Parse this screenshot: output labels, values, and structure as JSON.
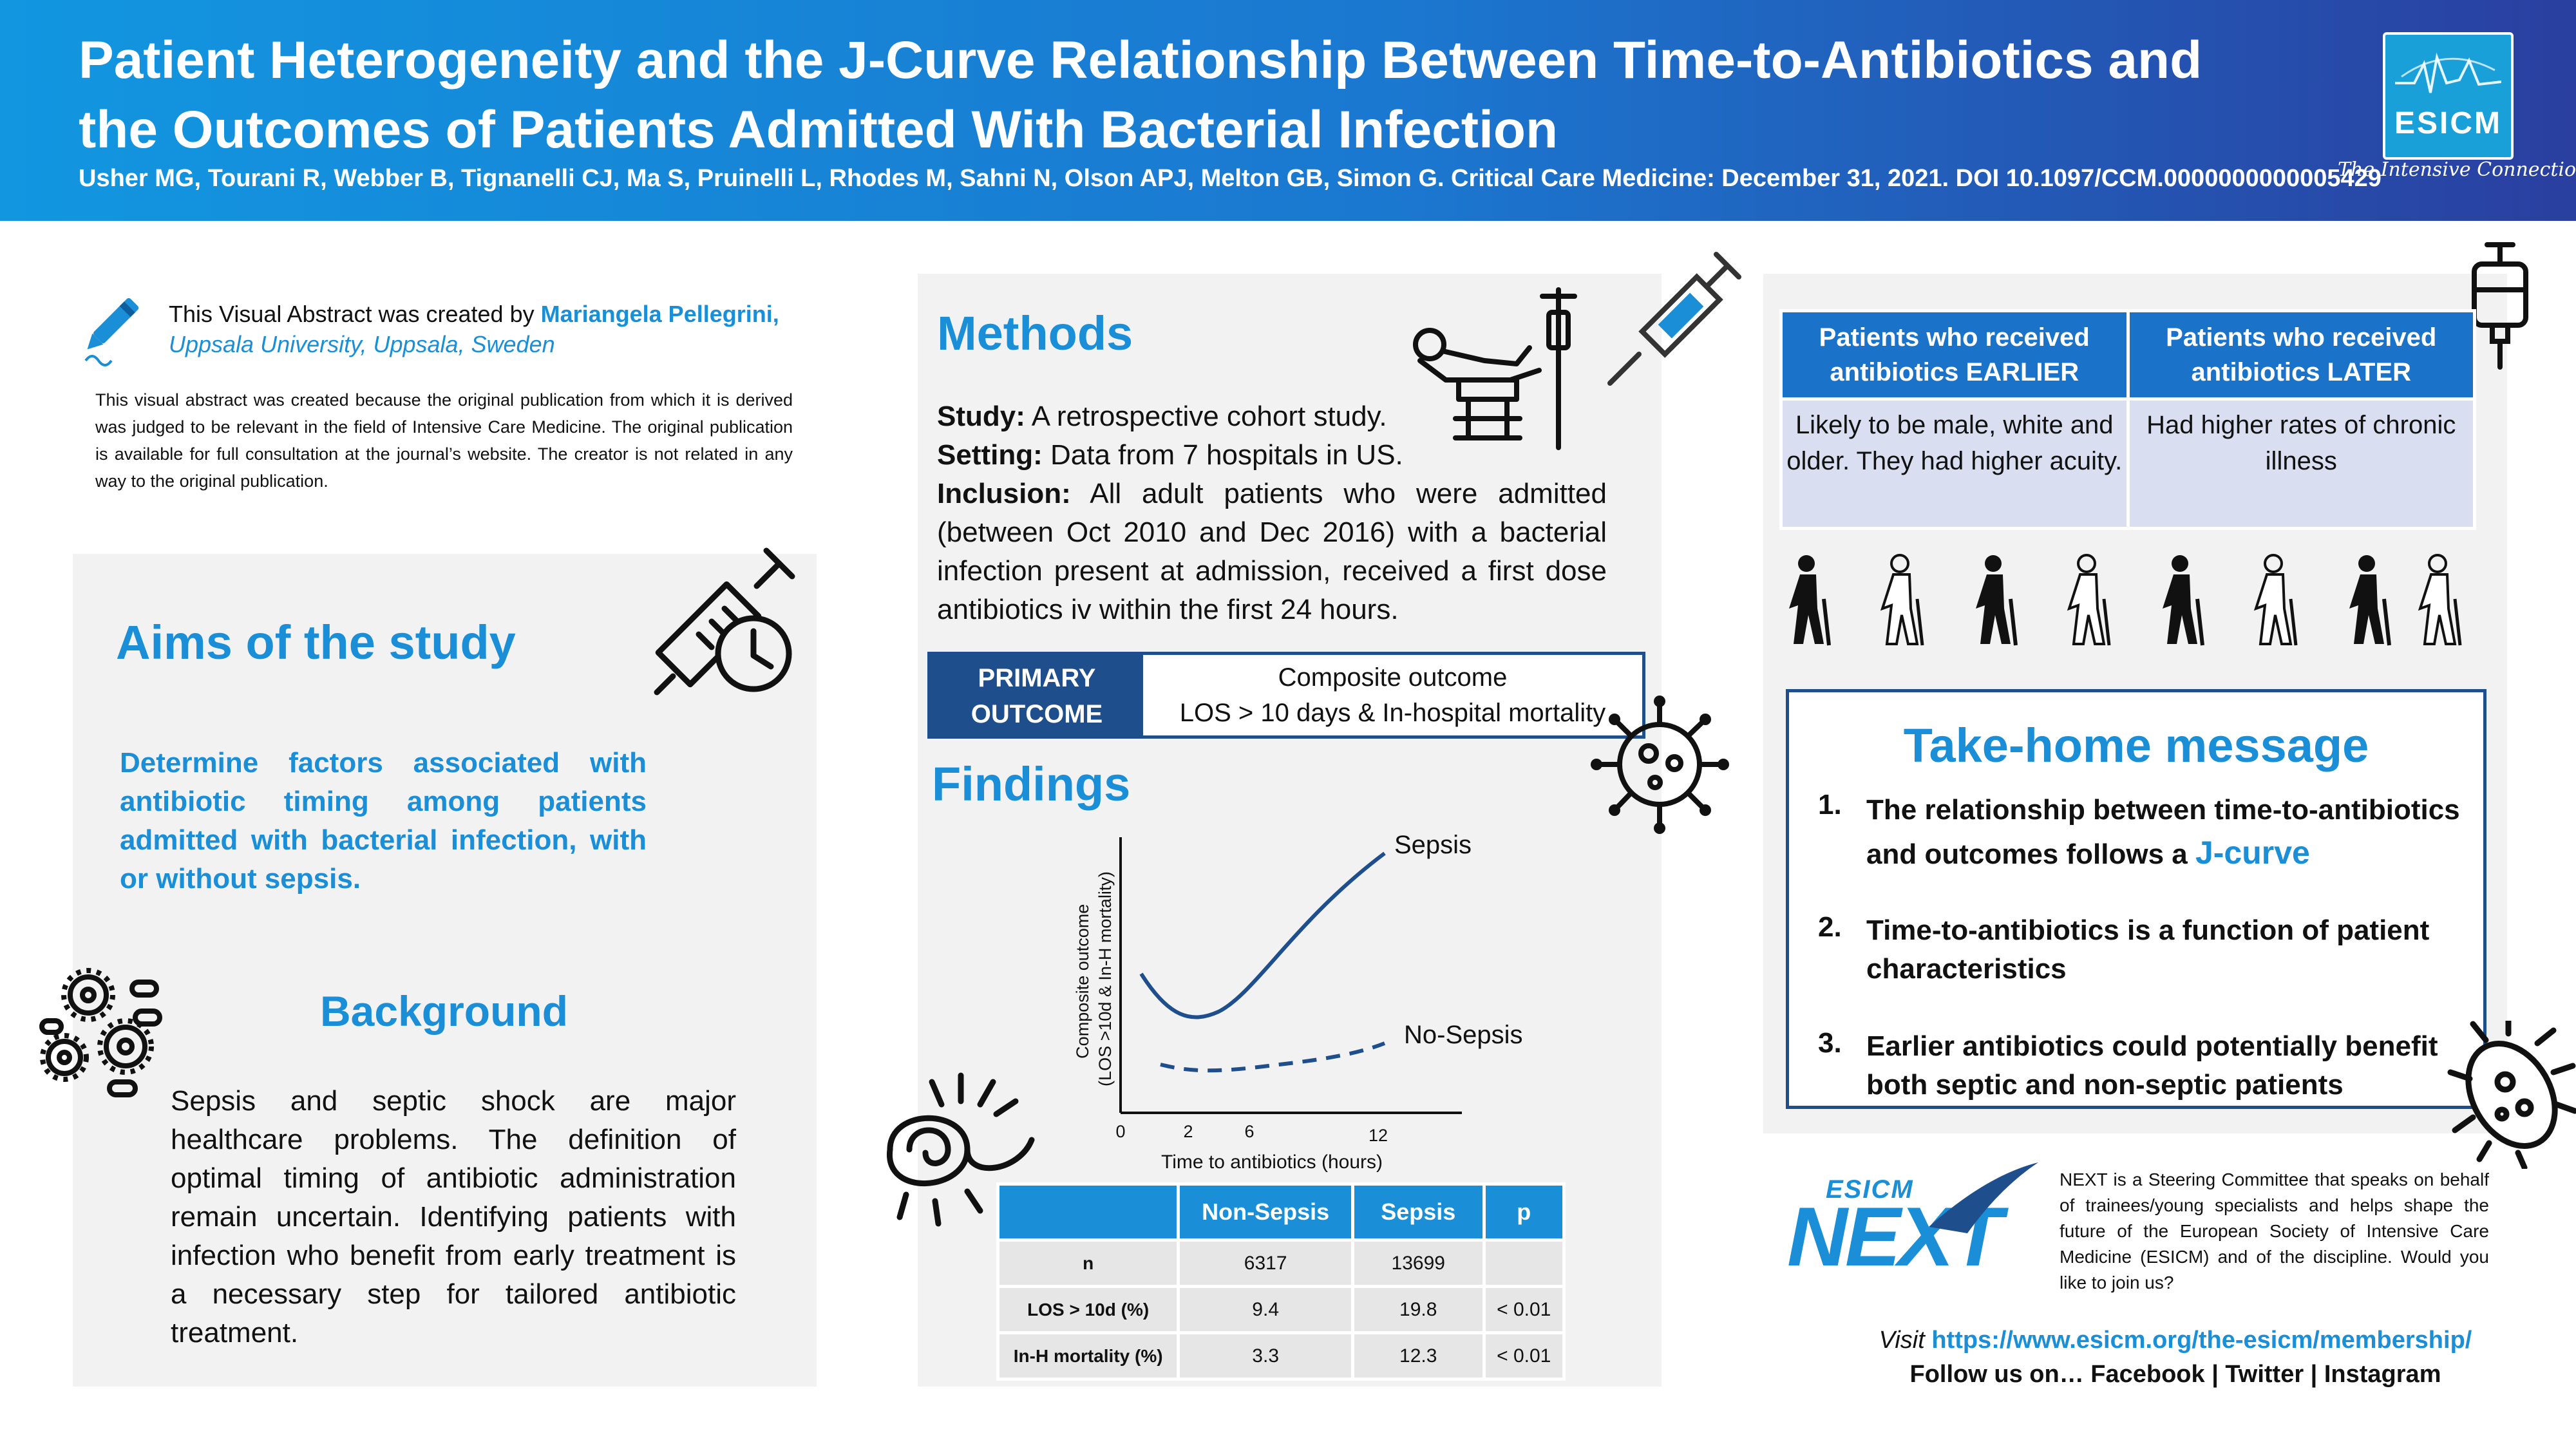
{
  "header": {
    "title": "Patient Heterogeneity and the J-Curve Relationship Between Time-to-Antibiotics and the Outcomes of Patients Admitted With Bacterial Infection",
    "citation": "Usher MG, Tourani R, Webber B, Tignanelli CJ, Ma S, Pruinelli L, Rhodes M, Sahni N, Olson APJ, Melton GB, Simon G. Critical Care Medicine: December 31, 2021. DOI 10.1097/CCM.0000000000005429",
    "logo_text": "ESICM",
    "tagline": "The Intensive Connection"
  },
  "creator": {
    "prefix": "This Visual Abstract was created by ",
    "name": "Mariangela Pellegrini,",
    "affiliation": "Uppsala University, Uppsala, Sweden",
    "disclaimer": "This visual abstract was created because the original publication from which it is derived was judged to be relevant in the field of Intensive Care Medicine. The original publication is available for full consultation at the journal’s website. The creator is not related in any way to the original publication."
  },
  "aims": {
    "heading": "Aims of the study",
    "text": "Determine factors associated with antibiotic timing among patients admitted with bacterial infection, with or without sepsis."
  },
  "background": {
    "heading": "Background",
    "text": "Sepsis and septic shock are major healthcare problems. The definition of optimal timing of antibiotic administration remain uncertain. Identifying patients with infection who benefit from early treatment is a necessary step for tailored antibiotic treatment."
  },
  "methods": {
    "heading": "Methods",
    "study_label": "Study:",
    "study_text": " A retrospective cohort study.",
    "setting_label": "Setting:",
    "setting_text": " Data from 7 hospitals in US.",
    "inclusion_label": "Inclusion:",
    "inclusion_text": " All adult patients who were admitted (between Oct 2010 and Dec 2016) with a bacterial infection present at admission, received a first dose antibiotics iv within the first 24 hours.",
    "primary_outcome_label": "PRIMARY OUTCOME",
    "outcome_line1": "Composite outcome",
    "outcome_line2": "LOS > 10 days  & In-hospital mortality"
  },
  "findings": {
    "heading": "Findings",
    "chart_data": {
      "type": "line",
      "xlabel": "Time to antibiotics (hours)",
      "ylabel": "Composite outcome (LOS >10d & In-H mortality)",
      "xticks": [
        "0",
        "2",
        "6",
        "12"
      ],
      "series": [
        {
          "name": "Sepsis",
          "style": "solid",
          "color": "#1f4e8c"
        },
        {
          "name": "No-Sepsis",
          "style": "dashed",
          "color": "#1f4e8c"
        }
      ]
    },
    "table": {
      "headers": [
        "",
        "Non-Sepsis",
        "Sepsis",
        "p"
      ],
      "rows": [
        [
          "n",
          "6317",
          "13699",
          ""
        ],
        [
          "LOS > 10d (%)",
          "9.4",
          "19.8",
          "< 0.01"
        ],
        [
          "In-H mortality (%)",
          "3.3",
          "12.3",
          "< 0.01"
        ]
      ]
    }
  },
  "comparison": {
    "headers": [
      "Patients who received antibiotics EARLIER",
      "Patients who received antibiotics LATER"
    ],
    "cells": [
      "Likely to be male, white and older. They had higher acuity.",
      "Had higher rates of chronic illness"
    ]
  },
  "takehome": {
    "heading": "Take-home message",
    "items": [
      {
        "num": "1.",
        "text": "The relationship between time-to-antibiotics and outcomes follows a ",
        "highlight": "J-curve"
      },
      {
        "num": "2.",
        "text": "Time-to-antibiotics is a function of patient characteristics",
        "highlight": ""
      },
      {
        "num": "3.",
        "text": "Earlier antibiotics could potentially benefit both septic and non-septic patients",
        "highlight": ""
      }
    ]
  },
  "next": {
    "logo_small": "ESICM",
    "logo_big": "NEXT",
    "text": "NEXT is a Steering Committee that speaks on behalf of trainees/young specialists and helps shape the future of the European Society of Intensive Care Medicine (ESICM) and of the discipline. Would you like to join us?",
    "visit_prefix": "Visit ",
    "visit_url": "https://www.esicm.org/the-esicm/membership/",
    "follow": "Follow us on… Facebook | Twitter | Instagram"
  },
  "colors": {
    "accent": "#1a8ed6",
    "navy": "#1f4e8c",
    "table_header": "#1a73c8",
    "table_cell": "#d9dff0"
  }
}
